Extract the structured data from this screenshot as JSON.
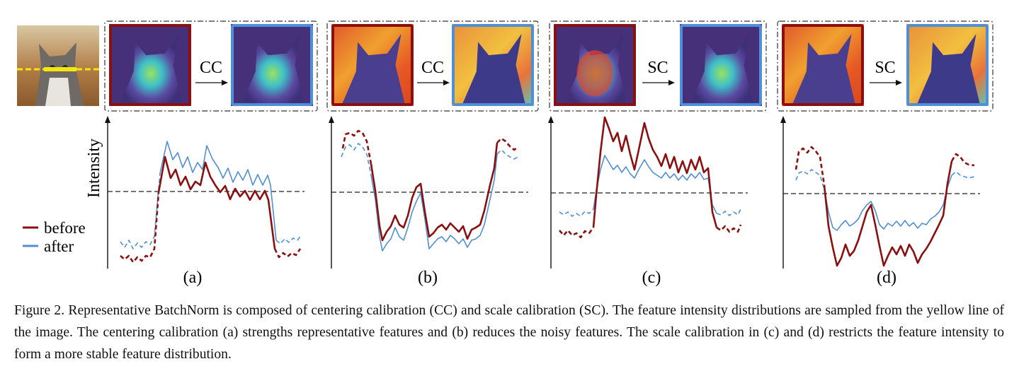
{
  "figure": {
    "colors": {
      "before": "#8b0f0f",
      "after": "#4f8fd8",
      "guide_line": "#f5e60d",
      "baseline": "#222222",
      "heat_purple": "#46307a",
      "heat_orange": "#e97a2a",
      "heat_cyan": "#4cc9c0"
    },
    "panels": [
      {
        "id": "a",
        "sublabel": "(a)",
        "operation": "CC",
        "heatmap": "object-focused",
        "icons": [
          "cat-heatmap-before",
          "right-arrow-icon",
          "cat-heatmap-after"
        ]
      },
      {
        "id": "b",
        "sublabel": "(b)",
        "operation": "CC",
        "heatmap": "background-focused",
        "icons": [
          "cat-heatmap-before",
          "right-arrow-icon",
          "cat-heatmap-after"
        ]
      },
      {
        "id": "c",
        "sublabel": "(c)",
        "operation": "SC",
        "heatmap": "object-focused",
        "icons": [
          "cat-heatmap-before",
          "right-arrow-icon",
          "cat-heatmap-after"
        ]
      },
      {
        "id": "d",
        "sublabel": "(d)",
        "operation": "SC",
        "heatmap": "background-focused",
        "icons": [
          "cat-heatmap-before",
          "right-arrow-icon",
          "cat-heatmap-after"
        ]
      }
    ],
    "ylabel": "Intensity",
    "legend": {
      "before": "before",
      "after": "after"
    }
  },
  "caption": {
    "label": "Figure 2.",
    "text": "Representative BatchNorm is composed of centering calibration (CC) and scale calibration (SC). The feature intensity distributions are sampled from the yellow line of the image. The centering calibration (a) strengths representative features and (b) reduces the noisy features. The scale calibration in (c) and (d) restricts the feature intensity to form a more stable feature distribution."
  }
}
